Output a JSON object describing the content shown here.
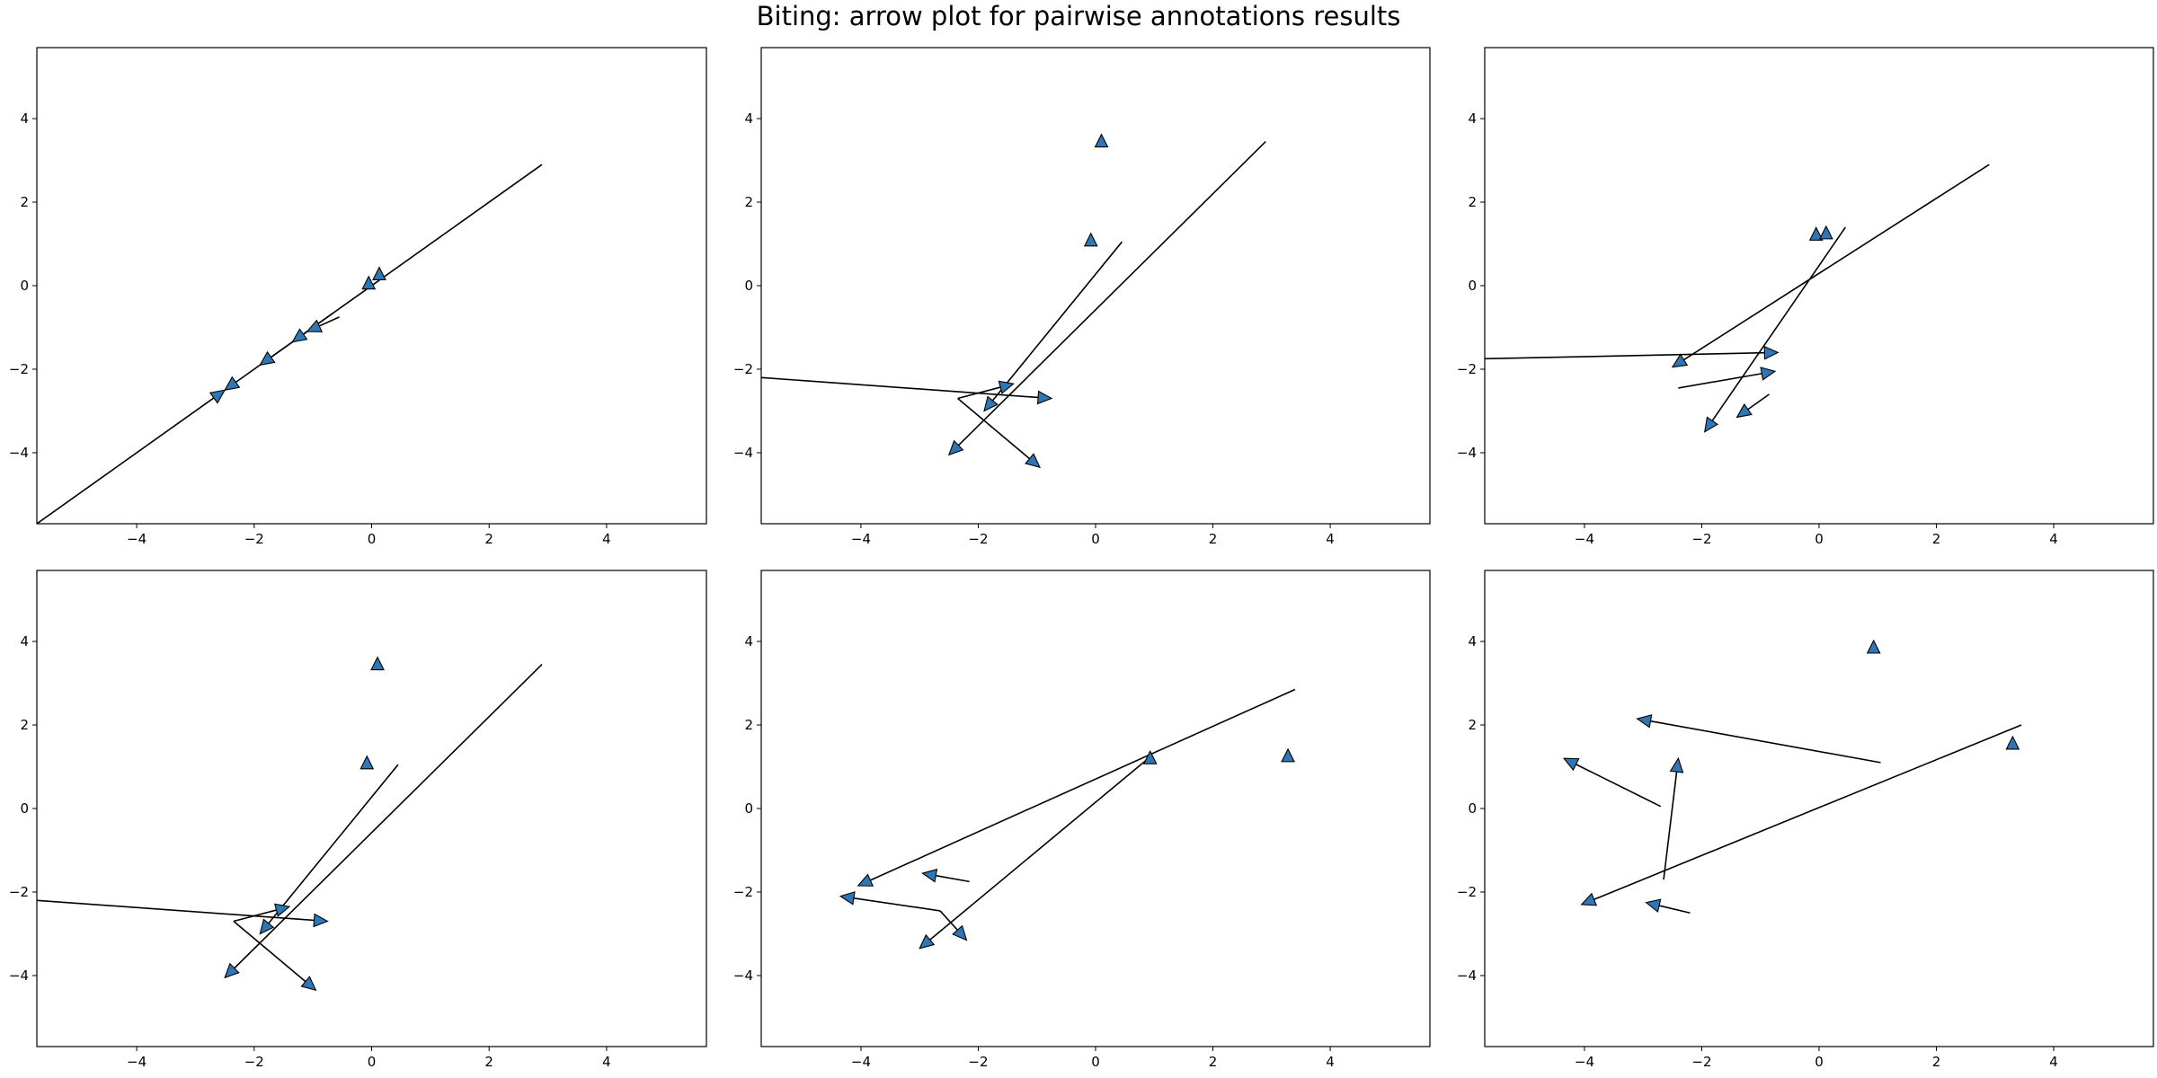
{
  "title": "Biting: arrow plot for pairwise annotations results",
  "colors": {
    "marker": "#2f77b4",
    "line": "#000000",
    "frame": "#000000"
  },
  "chart_data": [
    {
      "type": "scatter",
      "xlim": [
        -5.7,
        5.7
      ],
      "ylim": [
        -5.7,
        5.7
      ],
      "xticks": [
        -4,
        -2,
        0,
        2,
        4
      ],
      "yticks": [
        -4,
        -2,
        0,
        2,
        4
      ],
      "xticklabels": [
        "−4",
        "−2",
        "0",
        "2",
        "4"
      ],
      "yticklabels": [
        "−4",
        "−2",
        "0",
        "2",
        "4"
      ],
      "markers": [
        [
          -0.05,
          0.05
        ],
        [
          0.13,
          0.27
        ]
      ],
      "arrows": [
        [
          2.9,
          2.9,
          -2.5,
          -2.5
        ],
        [
          -0.65,
          -0.65,
          -1.9,
          -1.9
        ],
        [
          -0.9,
          -0.9,
          -1.35,
          -1.35
        ],
        [
          -0.55,
          -0.75,
          -1.1,
          -1.1
        ],
        [
          -5.7,
          -5.7,
          -2.5,
          -2.5
        ]
      ]
    },
    {
      "type": "scatter",
      "xlim": [
        -5.7,
        5.7
      ],
      "ylim": [
        -5.7,
        5.7
      ],
      "xticks": [
        -4,
        -2,
        0,
        2,
        4
      ],
      "yticks": [
        -4,
        -2,
        0,
        2,
        4
      ],
      "xticklabels": [
        "−4",
        "−2",
        "0",
        "2",
        "4"
      ],
      "yticklabels": [
        "−4",
        "−2",
        "0",
        "2",
        "4"
      ],
      "markers": [
        [
          0.1,
          3.45
        ],
        [
          -0.08,
          1.08
        ]
      ],
      "arrows": [
        [
          -5.7,
          -2.2,
          -0.75,
          -2.7
        ],
        [
          2.9,
          3.45,
          -2.5,
          -4.05
        ],
        [
          0.45,
          1.05,
          -1.9,
          -3.0
        ],
        [
          -2.35,
          -2.7,
          -0.95,
          -4.35
        ],
        [
          -2.35,
          -2.7,
          -1.4,
          -2.35
        ]
      ]
    },
    {
      "type": "scatter",
      "xlim": [
        -5.7,
        5.7
      ],
      "ylim": [
        -5.7,
        5.7
      ],
      "xticks": [
        -4,
        -2,
        0,
        2,
        4
      ],
      "yticks": [
        -4,
        -2,
        0,
        2,
        4
      ],
      "xticklabels": [
        "−4",
        "−2",
        "0",
        "2",
        "4"
      ],
      "yticklabels": [
        "−4",
        "−2",
        "0",
        "2",
        "4"
      ],
      "markers": [
        [
          -0.05,
          1.22
        ],
        [
          0.12,
          1.25
        ]
      ],
      "arrows": [
        [
          2.9,
          2.9,
          -2.5,
          -1.95
        ],
        [
          -5.7,
          -1.75,
          -0.7,
          -1.6
        ],
        [
          0.45,
          1.4,
          -1.95,
          -3.5
        ],
        [
          -2.4,
          -2.45,
          -0.75,
          -2.05
        ],
        [
          -0.85,
          -2.6,
          -1.4,
          -3.15
        ]
      ]
    },
    {
      "type": "scatter",
      "xlim": [
        -5.7,
        5.7
      ],
      "ylim": [
        -5.7,
        5.7
      ],
      "xticks": [
        -4,
        -2,
        0,
        2,
        4
      ],
      "yticks": [
        -4,
        -2,
        0,
        2,
        4
      ],
      "xticklabels": [
        "−4",
        "−2",
        "0",
        "2",
        "4"
      ],
      "yticklabels": [
        "−4",
        "−2",
        "0",
        "2",
        "4"
      ],
      "markers": [
        [
          0.1,
          3.45
        ],
        [
          -0.08,
          1.08
        ]
      ],
      "arrows": [
        [
          -5.7,
          -2.2,
          -0.75,
          -2.7
        ],
        [
          2.9,
          3.45,
          -2.5,
          -4.05
        ],
        [
          0.45,
          1.05,
          -1.9,
          -3.0
        ],
        [
          -2.35,
          -2.7,
          -0.95,
          -4.35
        ],
        [
          -2.35,
          -2.7,
          -1.4,
          -2.35
        ]
      ]
    },
    {
      "type": "scatter",
      "xlim": [
        -5.7,
        5.7
      ],
      "ylim": [
        -5.7,
        5.7
      ],
      "xticks": [
        -4,
        -2,
        0,
        2,
        4
      ],
      "yticks": [
        -4,
        -2,
        0,
        2,
        4
      ],
      "xticklabels": [
        "−4",
        "−2",
        "0",
        "2",
        "4"
      ],
      "yticklabels": [
        "−4",
        "−2",
        "0",
        "2",
        "4"
      ],
      "markers": [
        [
          0.93,
          1.2
        ],
        [
          3.28,
          1.25
        ]
      ],
      "arrows": [
        [
          3.4,
          2.85,
          -4.05,
          -1.85
        ],
        [
          0.9,
          1.2,
          -3.0,
          -3.35
        ],
        [
          -2.15,
          -1.75,
          -2.95,
          -1.55
        ],
        [
          -2.65,
          -2.45,
          -4.35,
          -2.1
        ],
        [
          -2.65,
          -2.45,
          -2.2,
          -3.15
        ]
      ]
    },
    {
      "type": "scatter",
      "xlim": [
        -5.7,
        5.7
      ],
      "ylim": [
        -5.7,
        5.7
      ],
      "xticks": [
        -4,
        -2,
        0,
        2,
        4
      ],
      "yticks": [
        -4,
        -2,
        0,
        2,
        4
      ],
      "xticklabels": [
        "−4",
        "−2",
        "0",
        "2",
        "4"
      ],
      "yticklabels": [
        "−4",
        "−2",
        "0",
        "2",
        "4"
      ],
      "markers": [
        [
          0.93,
          3.85
        ],
        [
          3.3,
          1.55
        ]
      ],
      "arrows": [
        [
          1.05,
          1.1,
          -3.1,
          2.15
        ],
        [
          3.45,
          2.0,
          -4.05,
          -2.3
        ],
        [
          -2.7,
          0.05,
          -4.35,
          1.2
        ],
        [
          -2.65,
          -1.7,
          -2.4,
          1.2
        ],
        [
          -2.2,
          -2.5,
          -2.95,
          -2.25
        ]
      ]
    }
  ]
}
